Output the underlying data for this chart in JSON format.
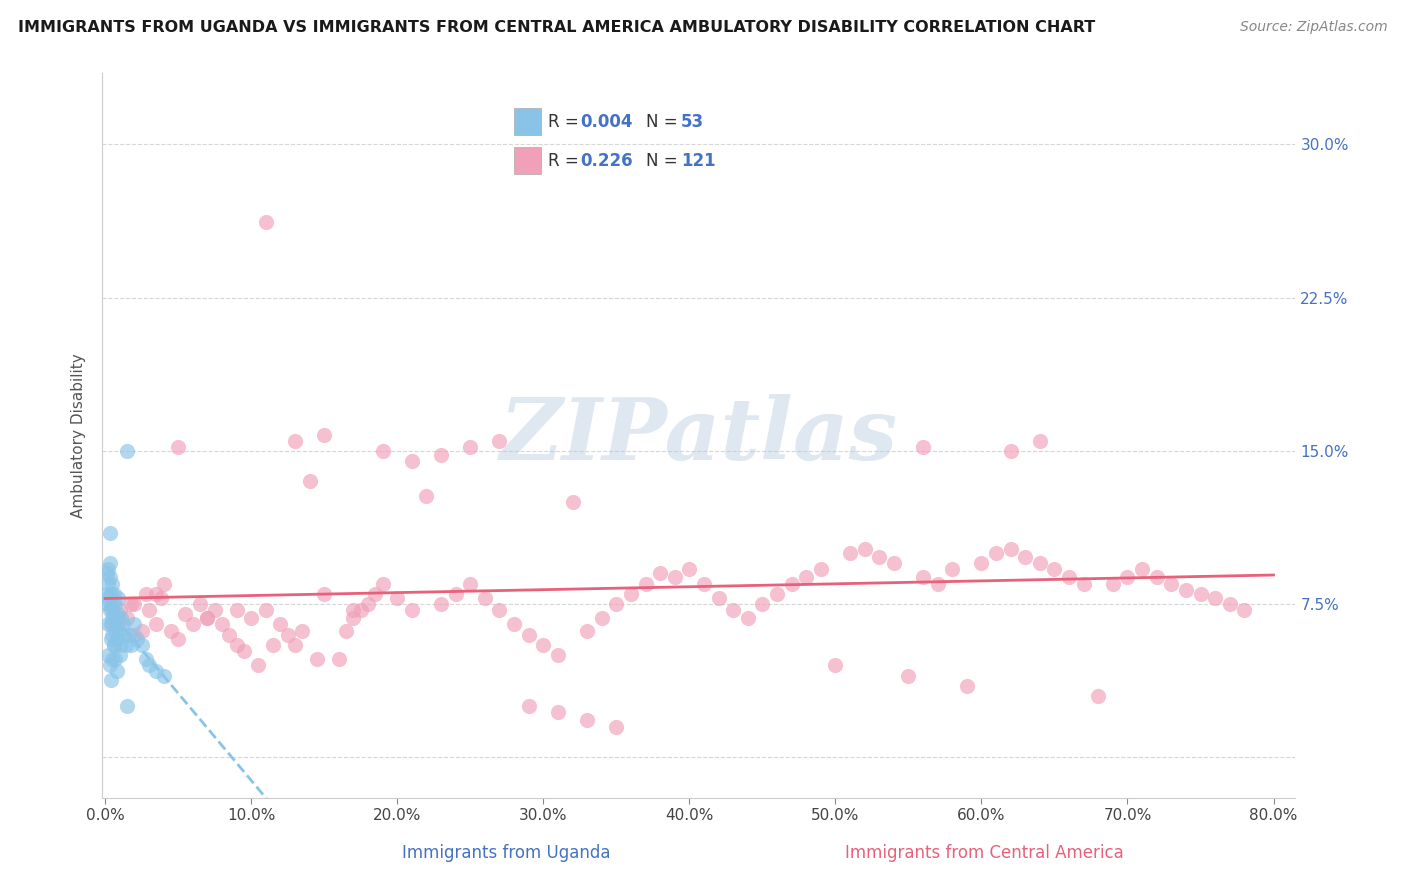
{
  "title": "IMMIGRANTS FROM UGANDA VS IMMIGRANTS FROM CENTRAL AMERICA AMBULATORY DISABILITY CORRELATION CHART",
  "source": "Source: ZipAtlas.com",
  "xlabel_uganda": "Immigrants from Uganda",
  "xlabel_ca": "Immigrants from Central America",
  "ylabel": "Ambulatory Disability",
  "xlim": [
    -0.002,
    0.815
  ],
  "ylim": [
    -0.02,
    0.335
  ],
  "xticks": [
    0.0,
    0.1,
    0.2,
    0.3,
    0.4,
    0.5,
    0.6,
    0.7,
    0.8
  ],
  "xticklabels": [
    "0.0%",
    "10.0%",
    "20.0%",
    "30.0%",
    "40.0%",
    "50.0%",
    "60.0%",
    "70.0%",
    "80.0%"
  ],
  "yticks": [
    0.0,
    0.075,
    0.15,
    0.225,
    0.3
  ],
  "yticklabels_right": [
    "",
    "7.5%",
    "15.0%",
    "22.5%",
    "30.0%"
  ],
  "legend_r_uganda": "0.004",
  "legend_n_uganda": "53",
  "legend_r_ca": "0.226",
  "legend_n_ca": "121",
  "color_uganda": "#89C4E8",
  "color_ca": "#F0A0B8",
  "color_uganda_line": "#89C4E8",
  "color_ca_line": "#E8607A",
  "blue_text": "#4472C4",
  "background_color": "#ffffff",
  "watermark": "ZIPatlas",
  "grid_color": "#CCCCCC",
  "title_color": "#1a1a1a",
  "source_color": "#888888",
  "ylabel_color": "#555555",
  "uganda_x": [
    0.001,
    0.001,
    0.001,
    0.002,
    0.002,
    0.002,
    0.002,
    0.003,
    0.003,
    0.003,
    0.003,
    0.004,
    0.004,
    0.004,
    0.004,
    0.005,
    0.005,
    0.005,
    0.005,
    0.006,
    0.006,
    0.006,
    0.007,
    0.007,
    0.008,
    0.008,
    0.009,
    0.009,
    0.01,
    0.01,
    0.011,
    0.012,
    0.013,
    0.014,
    0.015,
    0.016,
    0.018,
    0.02,
    0.022,
    0.025,
    0.028,
    0.03,
    0.035,
    0.04,
    0.002,
    0.003,
    0.004,
    0.005,
    0.006,
    0.007,
    0.008,
    0.01,
    0.015
  ],
  "uganda_y": [
    0.08,
    0.09,
    0.075,
    0.085,
    0.092,
    0.078,
    0.065,
    0.095,
    0.088,
    0.072,
    0.11,
    0.08,
    0.065,
    0.073,
    0.058,
    0.085,
    0.075,
    0.068,
    0.06,
    0.08,
    0.07,
    0.055,
    0.075,
    0.062,
    0.065,
    0.058,
    0.07,
    0.078,
    0.062,
    0.055,
    0.068,
    0.065,
    0.06,
    0.055,
    0.15,
    0.06,
    0.055,
    0.065,
    0.058,
    0.055,
    0.048,
    0.045,
    0.042,
    0.04,
    0.05,
    0.045,
    0.038,
    0.048,
    0.055,
    0.048,
    0.042,
    0.05,
    0.025
  ],
  "ca_x": [
    0.005,
    0.01,
    0.015,
    0.018,
    0.02,
    0.025,
    0.028,
    0.03,
    0.035,
    0.038,
    0.04,
    0.045,
    0.05,
    0.055,
    0.06,
    0.065,
    0.07,
    0.075,
    0.08,
    0.085,
    0.09,
    0.095,
    0.1,
    0.105,
    0.11,
    0.115,
    0.12,
    0.125,
    0.13,
    0.135,
    0.14,
    0.145,
    0.15,
    0.16,
    0.165,
    0.17,
    0.175,
    0.18,
    0.185,
    0.19,
    0.2,
    0.21,
    0.22,
    0.23,
    0.24,
    0.25,
    0.26,
    0.27,
    0.28,
    0.29,
    0.3,
    0.31,
    0.32,
    0.33,
    0.34,
    0.35,
    0.36,
    0.37,
    0.38,
    0.39,
    0.4,
    0.41,
    0.42,
    0.43,
    0.44,
    0.45,
    0.46,
    0.47,
    0.48,
    0.49,
    0.5,
    0.51,
    0.52,
    0.53,
    0.54,
    0.55,
    0.56,
    0.57,
    0.58,
    0.59,
    0.6,
    0.61,
    0.62,
    0.63,
    0.64,
    0.65,
    0.66,
    0.67,
    0.68,
    0.69,
    0.7,
    0.71,
    0.72,
    0.73,
    0.74,
    0.75,
    0.76,
    0.77,
    0.78,
    0.008,
    0.02,
    0.035,
    0.05,
    0.07,
    0.09,
    0.11,
    0.13,
    0.15,
    0.17,
    0.19,
    0.21,
    0.23,
    0.25,
    0.27,
    0.29,
    0.31,
    0.33,
    0.35,
    0.56,
    0.62,
    0.64
  ],
  "ca_y": [
    0.065,
    0.072,
    0.068,
    0.075,
    0.06,
    0.062,
    0.08,
    0.072,
    0.065,
    0.078,
    0.085,
    0.062,
    0.058,
    0.07,
    0.065,
    0.075,
    0.068,
    0.072,
    0.065,
    0.06,
    0.055,
    0.052,
    0.068,
    0.045,
    0.072,
    0.055,
    0.065,
    0.06,
    0.055,
    0.062,
    0.135,
    0.048,
    0.08,
    0.048,
    0.062,
    0.068,
    0.072,
    0.075,
    0.08,
    0.085,
    0.078,
    0.072,
    0.128,
    0.075,
    0.08,
    0.085,
    0.078,
    0.072,
    0.065,
    0.06,
    0.055,
    0.05,
    0.125,
    0.062,
    0.068,
    0.075,
    0.08,
    0.085,
    0.09,
    0.088,
    0.092,
    0.085,
    0.078,
    0.072,
    0.068,
    0.075,
    0.08,
    0.085,
    0.088,
    0.092,
    0.045,
    0.1,
    0.102,
    0.098,
    0.095,
    0.04,
    0.088,
    0.085,
    0.092,
    0.035,
    0.095,
    0.1,
    0.102,
    0.098,
    0.095,
    0.092,
    0.088,
    0.085,
    0.03,
    0.085,
    0.088,
    0.092,
    0.088,
    0.085,
    0.082,
    0.08,
    0.078,
    0.075,
    0.072,
    0.068,
    0.075,
    0.08,
    0.152,
    0.068,
    0.072,
    0.262,
    0.155,
    0.158,
    0.072,
    0.15,
    0.145,
    0.148,
    0.152,
    0.155,
    0.025,
    0.022,
    0.018,
    0.015,
    0.152,
    0.15,
    0.155
  ]
}
